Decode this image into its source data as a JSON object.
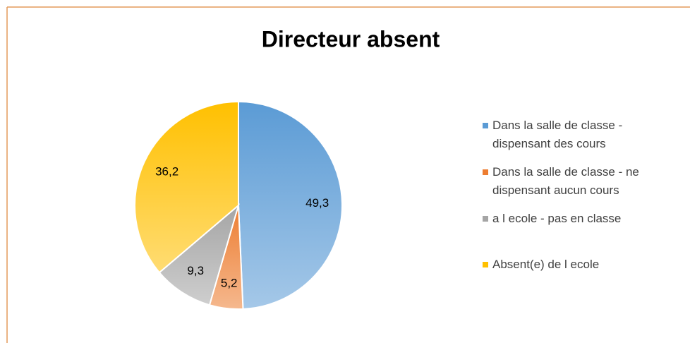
{
  "chart_data": {
    "type": "pie",
    "title": "Directeur absent",
    "categories": [
      "Dans la salle de classe - dispensant des cours",
      "Dans la salle de classe - ne dispensant aucun cours",
      "a l ecole - pas en classe",
      "Absent(e) de l ecole"
    ],
    "values": [
      49.3,
      5.2,
      9.3,
      36.2
    ],
    "value_labels": [
      "49,3",
      "5,2",
      "9,3",
      "36,2"
    ],
    "colors": [
      "#5b9bd5",
      "#ed7d31",
      "#a5a5a5",
      "#ffc000"
    ],
    "legend": "right"
  }
}
